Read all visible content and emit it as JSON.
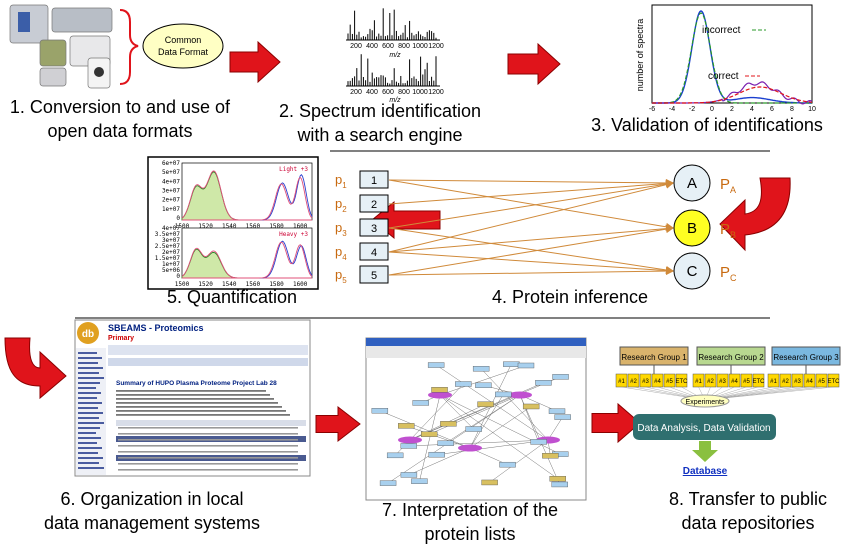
{
  "steps": [
    {
      "lines": [
        "1. Conversion to and use of",
        "open data formats"
      ]
    },
    {
      "lines": [
        "2. Spectrum identification",
        "with a search engine"
      ]
    },
    {
      "lines": [
        "3. Validation of identifications"
      ]
    },
    {
      "lines": [
        "4. Protein inference"
      ]
    },
    {
      "lines": [
        "5. Quantification"
      ]
    },
    {
      "lines": [
        "6. Organization in local",
        "data management systems"
      ]
    },
    {
      "lines": [
        "7. Interpretation of the",
        "protein lists"
      ]
    },
    {
      "lines": [
        "8. Transfer to public",
        "data repositories"
      ]
    }
  ],
  "conversion": {
    "format_lines": [
      "Common",
      "Data Format"
    ]
  },
  "spectrum": {
    "ticks": [
      "200",
      "400",
      "600",
      "800",
      "1000",
      "1200"
    ],
    "axis_label": "m/z"
  },
  "validation": {
    "y_label": "number of spectra",
    "xticks": [
      "-6",
      "-4",
      "-2",
      "0",
      "2",
      "4",
      "6",
      "8",
      "10"
    ],
    "legend": [
      "incorrect",
      "correct"
    ]
  },
  "quantification": {
    "plots": [
      {
        "legend": "Light +3",
        "yticks": [
          "6e+07",
          "5e+07",
          "4e+07",
          "3e+07",
          "2e+07",
          "1e+07",
          "0"
        ]
      },
      {
        "legend": "Heavy +3",
        "yticks": [
          "4e+07",
          "3.5e+07",
          "3e+07",
          "2.5e+07",
          "2e+07",
          "1.5e+07",
          "1e+07",
          "5e+06",
          "0"
        ]
      }
    ],
    "xticks": [
      "1500",
      "1520",
      "1540",
      "1560",
      "1580",
      "1600"
    ]
  },
  "inference": {
    "peptides": [
      {
        "letter": "p",
        "sub": "1",
        "box": "1"
      },
      {
        "letter": "p",
        "sub": "2",
        "box": "2"
      },
      {
        "letter": "p",
        "sub": "3",
        "box": "3"
      },
      {
        "letter": "p",
        "sub": "4",
        "box": "4"
      },
      {
        "letter": "p",
        "sub": "5",
        "box": "5"
      }
    ],
    "proteins": [
      {
        "label": "A",
        "letter": "P",
        "sub": "A"
      },
      {
        "label": "B",
        "letter": "P",
        "sub": "B"
      },
      {
        "label": "C",
        "letter": "P",
        "sub": "C"
      }
    ]
  },
  "sbeams": {
    "logo": "db",
    "title": "SBEAMS - Proteomics",
    "subtitle": "Primary",
    "summary": "Summary of HUPO Plasma Proteome Project Lab 28"
  },
  "repositories": {
    "groups": [
      {
        "name": "Research Group 1",
        "experiments": [
          "#1",
          "#2",
          "#3",
          "#4",
          "#5",
          "ETC"
        ]
      },
      {
        "name": "Research Group 2",
        "experiments": [
          "#1",
          "#2",
          "#3",
          "#4",
          "#5",
          "ETC"
        ]
      },
      {
        "name": "Research Group 3",
        "experiments": [
          "#1",
          "#2",
          "#3",
          "#4",
          "#5",
          "ETC"
        ]
      }
    ],
    "experiments_label": "Experiments",
    "analysis": "Data Analysis, Data Validation",
    "database": "Database"
  }
}
